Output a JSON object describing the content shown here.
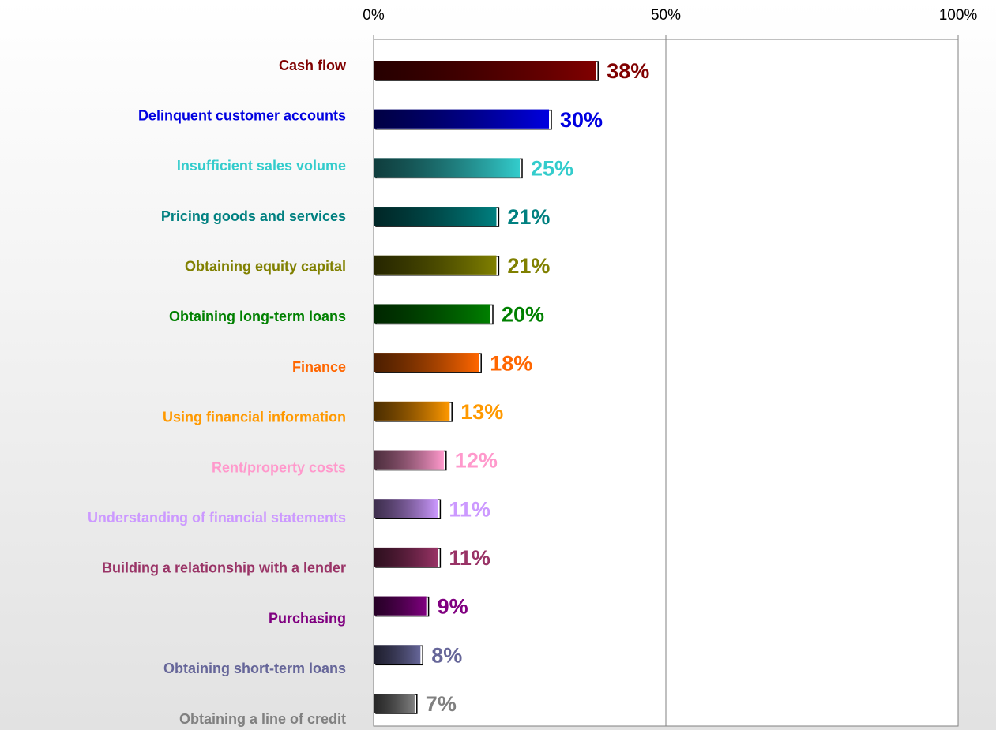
{
  "chart_data": {
    "type": "bar",
    "orientation": "horizontal",
    "categories": [
      "Cash flow",
      "Delinquent customer accounts",
      "Insufficient sales volume",
      "Pricing goods and services",
      "Obtaining equity capital",
      "Obtaining long-term loans",
      "Finance",
      "Using financial information",
      "Rent/property costs",
      "Understanding of financial statements",
      "Building a relationship with a lender",
      "Purchasing",
      "Obtaining short-term loans",
      "Obtaining a line of credit"
    ],
    "values": [
      38,
      30,
      25,
      21,
      21,
      20,
      18,
      13,
      12,
      11,
      11,
      9,
      8,
      7
    ],
    "value_labels": [
      "38%",
      "30%",
      "25%",
      "21%",
      "21%",
      "20%",
      "18%",
      "13%",
      "12%",
      "11%",
      "11%",
      "9%",
      "8%",
      "7%"
    ],
    "colors": [
      "#800000",
      "#0000e0",
      "#33cccc",
      "#008080",
      "#808000",
      "#008000",
      "#ff6600",
      "#ff9900",
      "#ff99cc",
      "#cc99ff",
      "#993366",
      "#800080",
      "#666699",
      "#808080"
    ],
    "xlim": [
      0,
      100
    ],
    "xticks": [
      {
        "value": 0,
        "label": "0%"
      },
      {
        "value": 50,
        "label": "50%"
      },
      {
        "value": 100,
        "label": "100%"
      }
    ],
    "grid": true
  }
}
